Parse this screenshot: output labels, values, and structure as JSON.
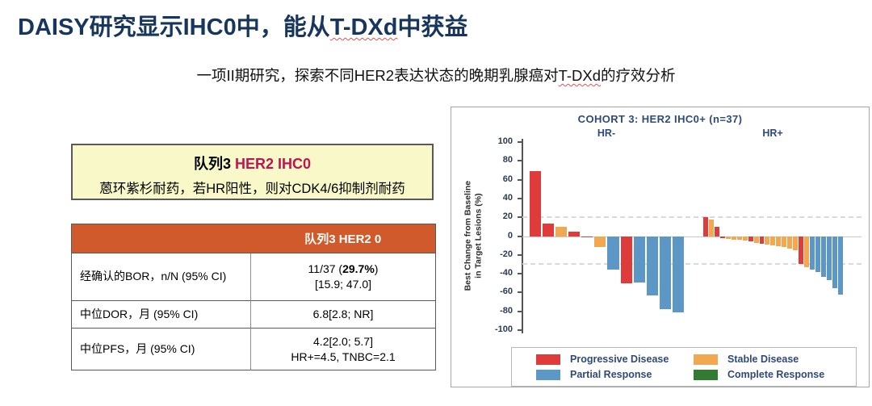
{
  "title": {
    "pre": "DAISY研究显示IHC0中，能从",
    "drug": "T-DXd",
    "post": "中获益"
  },
  "subtitle": {
    "pre": "一项II期研究，探索不同HER2表达状态的晚期乳腺癌对",
    "drug": "T-DXd",
    "post": "的疗效分析"
  },
  "cohort_box": {
    "title_prefix": "队列3 ",
    "title_highlight": "HER2 IHC0",
    "description": "蒽环紫杉耐药，若HR阳性，则对CDK4/6抑制剂耐药"
  },
  "table": {
    "header": "队列3 HER2 0",
    "rows": [
      {
        "label": "经确认的BOR，n/N (95% CI)",
        "value_pre": "11/37 (",
        "value_bold": "29.7%",
        "value_post": ")",
        "value_line2": "[15.9; 47.0]"
      },
      {
        "label": "中位DOR，月 (95% CI)",
        "value": "6.8[2.8; NR]"
      },
      {
        "label": "中位PFS，月 (95% CI)",
        "value": "4.2[2.0; 5.7]",
        "value_line2": "HR+=4.5, TNBC=2.1"
      }
    ]
  },
  "chart_data": {
    "type": "bar",
    "subtype": "waterfall",
    "title": "COHORT 3: HER2 IHC0+ (n=37)",
    "ylabel": "Best Change from Baseline\nin Target Lesions (%)",
    "ylim": [
      -100,
      100
    ],
    "yticks": [
      100,
      80,
      60,
      40,
      20,
      0,
      -20,
      -40,
      -60,
      -80,
      -100
    ],
    "reference_lines": [
      20,
      -30
    ],
    "colors": {
      "PD": "#E03B3B",
      "SD": "#F2A851",
      "PR": "#5C97C5",
      "CR": "#337A33"
    },
    "groups": [
      {
        "name": "HR-",
        "bars": [
          {
            "v": 69,
            "cat": "PD"
          },
          {
            "v": 13,
            "cat": "PD"
          },
          {
            "v": 10,
            "cat": "SD"
          },
          {
            "v": 5,
            "cat": "PD"
          },
          {
            "v": -0.5,
            "cat": "PD"
          },
          {
            "v": -12,
            "cat": "SD"
          },
          {
            "v": -36,
            "cat": "PR"
          },
          {
            "v": -50,
            "cat": "PD"
          },
          {
            "v": -49,
            "cat": "PR"
          },
          {
            "v": -63,
            "cat": "PR"
          },
          {
            "v": -78,
            "cat": "PR"
          },
          {
            "v": -81,
            "cat": "PR"
          }
        ]
      },
      {
        "name": "HR+",
        "bars": [
          {
            "v": 20,
            "cat": "PD"
          },
          {
            "v": 18,
            "cat": "SD"
          },
          {
            "v": 10,
            "cat": "PD"
          },
          {
            "v": -2,
            "cat": "PD"
          },
          {
            "v": -3,
            "cat": "SD"
          },
          {
            "v": -4,
            "cat": "SD"
          },
          {
            "v": -4,
            "cat": "SD"
          },
          {
            "v": -5,
            "cat": "SD"
          },
          {
            "v": -6,
            "cat": "PD"
          },
          {
            "v": -7,
            "cat": "SD"
          },
          {
            "v": -8,
            "cat": "PD"
          },
          {
            "v": -9,
            "cat": "SD"
          },
          {
            "v": -10,
            "cat": "SD"
          },
          {
            "v": -11,
            "cat": "SD"
          },
          {
            "v": -12,
            "cat": "SD"
          },
          {
            "v": -13,
            "cat": "SD"
          },
          {
            "v": -15,
            "cat": "SD"
          },
          {
            "v": -30,
            "cat": "PD"
          },
          {
            "v": -33,
            "cat": "SD"
          },
          {
            "v": -36,
            "cat": "PR"
          },
          {
            "v": -38,
            "cat": "PR"
          },
          {
            "v": -43,
            "cat": "PR"
          },
          {
            "v": -47,
            "cat": "PR"
          },
          {
            "v": -55,
            "cat": "PR"
          },
          {
            "v": -62,
            "cat": "PR"
          }
        ]
      }
    ],
    "legend": [
      {
        "label": "Progressive Disease",
        "cat": "PD"
      },
      {
        "label": "Stable Disease",
        "cat": "SD"
      },
      {
        "label": "Partial Response",
        "cat": "PR"
      },
      {
        "label": "Complete Response",
        "cat": "CR"
      }
    ]
  }
}
